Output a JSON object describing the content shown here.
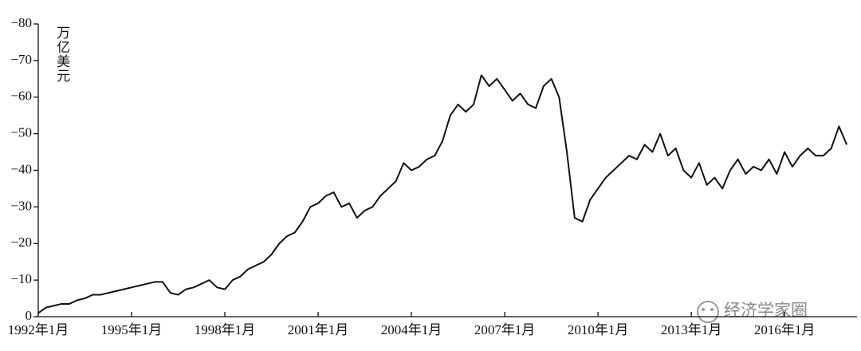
{
  "chart_data": {
    "type": "line",
    "y_label": "万亿美元",
    "x": [
      1992,
      1992.25,
      1992.5,
      1992.75,
      1993,
      1993.25,
      1993.5,
      1993.75,
      1994,
      1994.25,
      1994.5,
      1994.75,
      1995,
      1995.25,
      1995.5,
      1995.75,
      1996,
      1996.25,
      1996.5,
      1996.75,
      1997,
      1997.25,
      1997.5,
      1997.75,
      1998,
      1998.25,
      1998.5,
      1998.75,
      1999,
      1999.25,
      1999.5,
      1999.75,
      2000,
      2000.25,
      2000.5,
      2000.75,
      2001,
      2001.25,
      2001.5,
      2001.75,
      2002,
      2002.25,
      2002.5,
      2002.75,
      2003,
      2003.25,
      2003.5,
      2003.75,
      2004,
      2004.25,
      2004.5,
      2004.75,
      2005,
      2005.25,
      2005.5,
      2005.75,
      2006,
      2006.25,
      2006.5,
      2006.75,
      2007,
      2007.25,
      2007.5,
      2007.75,
      2008,
      2008.25,
      2008.5,
      2008.75,
      2009,
      2009.25,
      2009.5,
      2009.75,
      2010,
      2010.25,
      2010.5,
      2010.75,
      2011,
      2011.25,
      2011.5,
      2011.75,
      2012,
      2012.25,
      2012.5,
      2012.75,
      2013,
      2013.25,
      2013.5,
      2013.75,
      2014,
      2014.25,
      2014.5,
      2014.75,
      2015,
      2015.25,
      2015.5,
      2015.75,
      2016,
      2016.25,
      2016.5,
      2016.75,
      2017,
      2017.25,
      2017.5,
      2017.75,
      2018
    ],
    "series": [
      {
        "color": "#111111",
        "values": [
          -1,
          -2.5,
          -3,
          -3.5,
          -3.5,
          -4.5,
          -5,
          -6,
          -6,
          -6.5,
          -7,
          -7.5,
          -8,
          -8.5,
          -9,
          -9.5,
          -9.5,
          -6.5,
          -6,
          -7.5,
          -8,
          -9,
          -10,
          -8,
          -7.5,
          -10,
          -11,
          -13,
          -14,
          -15,
          -17,
          -20,
          -22,
          -23,
          -26,
          -30,
          -31,
          -33,
          -34,
          -30,
          -31,
          -27,
          -29,
          -30,
          -33,
          -35,
          -37,
          -42,
          -40,
          -41,
          -43,
          -44,
          -48,
          -55,
          -58,
          -56,
          -58,
          -66,
          -63,
          -65,
          -62,
          -59,
          -61,
          -58,
          -57,
          -63,
          -65,
          -60,
          -45,
          -27,
          -26,
          -32,
          -35,
          -38,
          -40,
          -42,
          -44,
          -43,
          -47,
          -45,
          -50,
          -44,
          -46,
          -40,
          -38,
          -42,
          -36,
          -38,
          -35,
          -40,
          -43,
          -39,
          -41,
          -40,
          -43,
          -39,
          -45,
          -41,
          -44,
          -46,
          -44,
          -44,
          -46,
          -52,
          -47
        ]
      }
    ],
    "xlim": [
      1992,
      2018.33
    ],
    "xticks": [
      {
        "value": 1992,
        "label": "1992年1月"
      },
      {
        "value": 1995,
        "label": "1995年1月"
      },
      {
        "value": 1998,
        "label": "1998年1月"
      },
      {
        "value": 2001,
        "label": "2001年1月"
      },
      {
        "value": 2004,
        "label": "2004年1月"
      },
      {
        "value": 2007,
        "label": "2007年1月"
      },
      {
        "value": 2010,
        "label": "2010年1月"
      },
      {
        "value": 2013,
        "label": "2013年1月"
      },
      {
        "value": 2016,
        "label": "2016年1月"
      }
    ],
    "ylim": [
      0,
      -80
    ],
    "yticks": [
      0,
      {
        "value": -10,
        "label": "−10"
      },
      {
        "value": -20,
        "label": "−20"
      },
      {
        "value": -30,
        "label": "−30"
      },
      {
        "value": -40,
        "label": "−40"
      },
      {
        "value": -50,
        "label": "−50"
      },
      {
        "value": -60,
        "label": "−60"
      },
      {
        "value": -70,
        "label": "−70"
      },
      {
        "value": -80,
        "label": "−80"
      }
    ],
    "grid": false
  },
  "watermark": "经济学家圈"
}
